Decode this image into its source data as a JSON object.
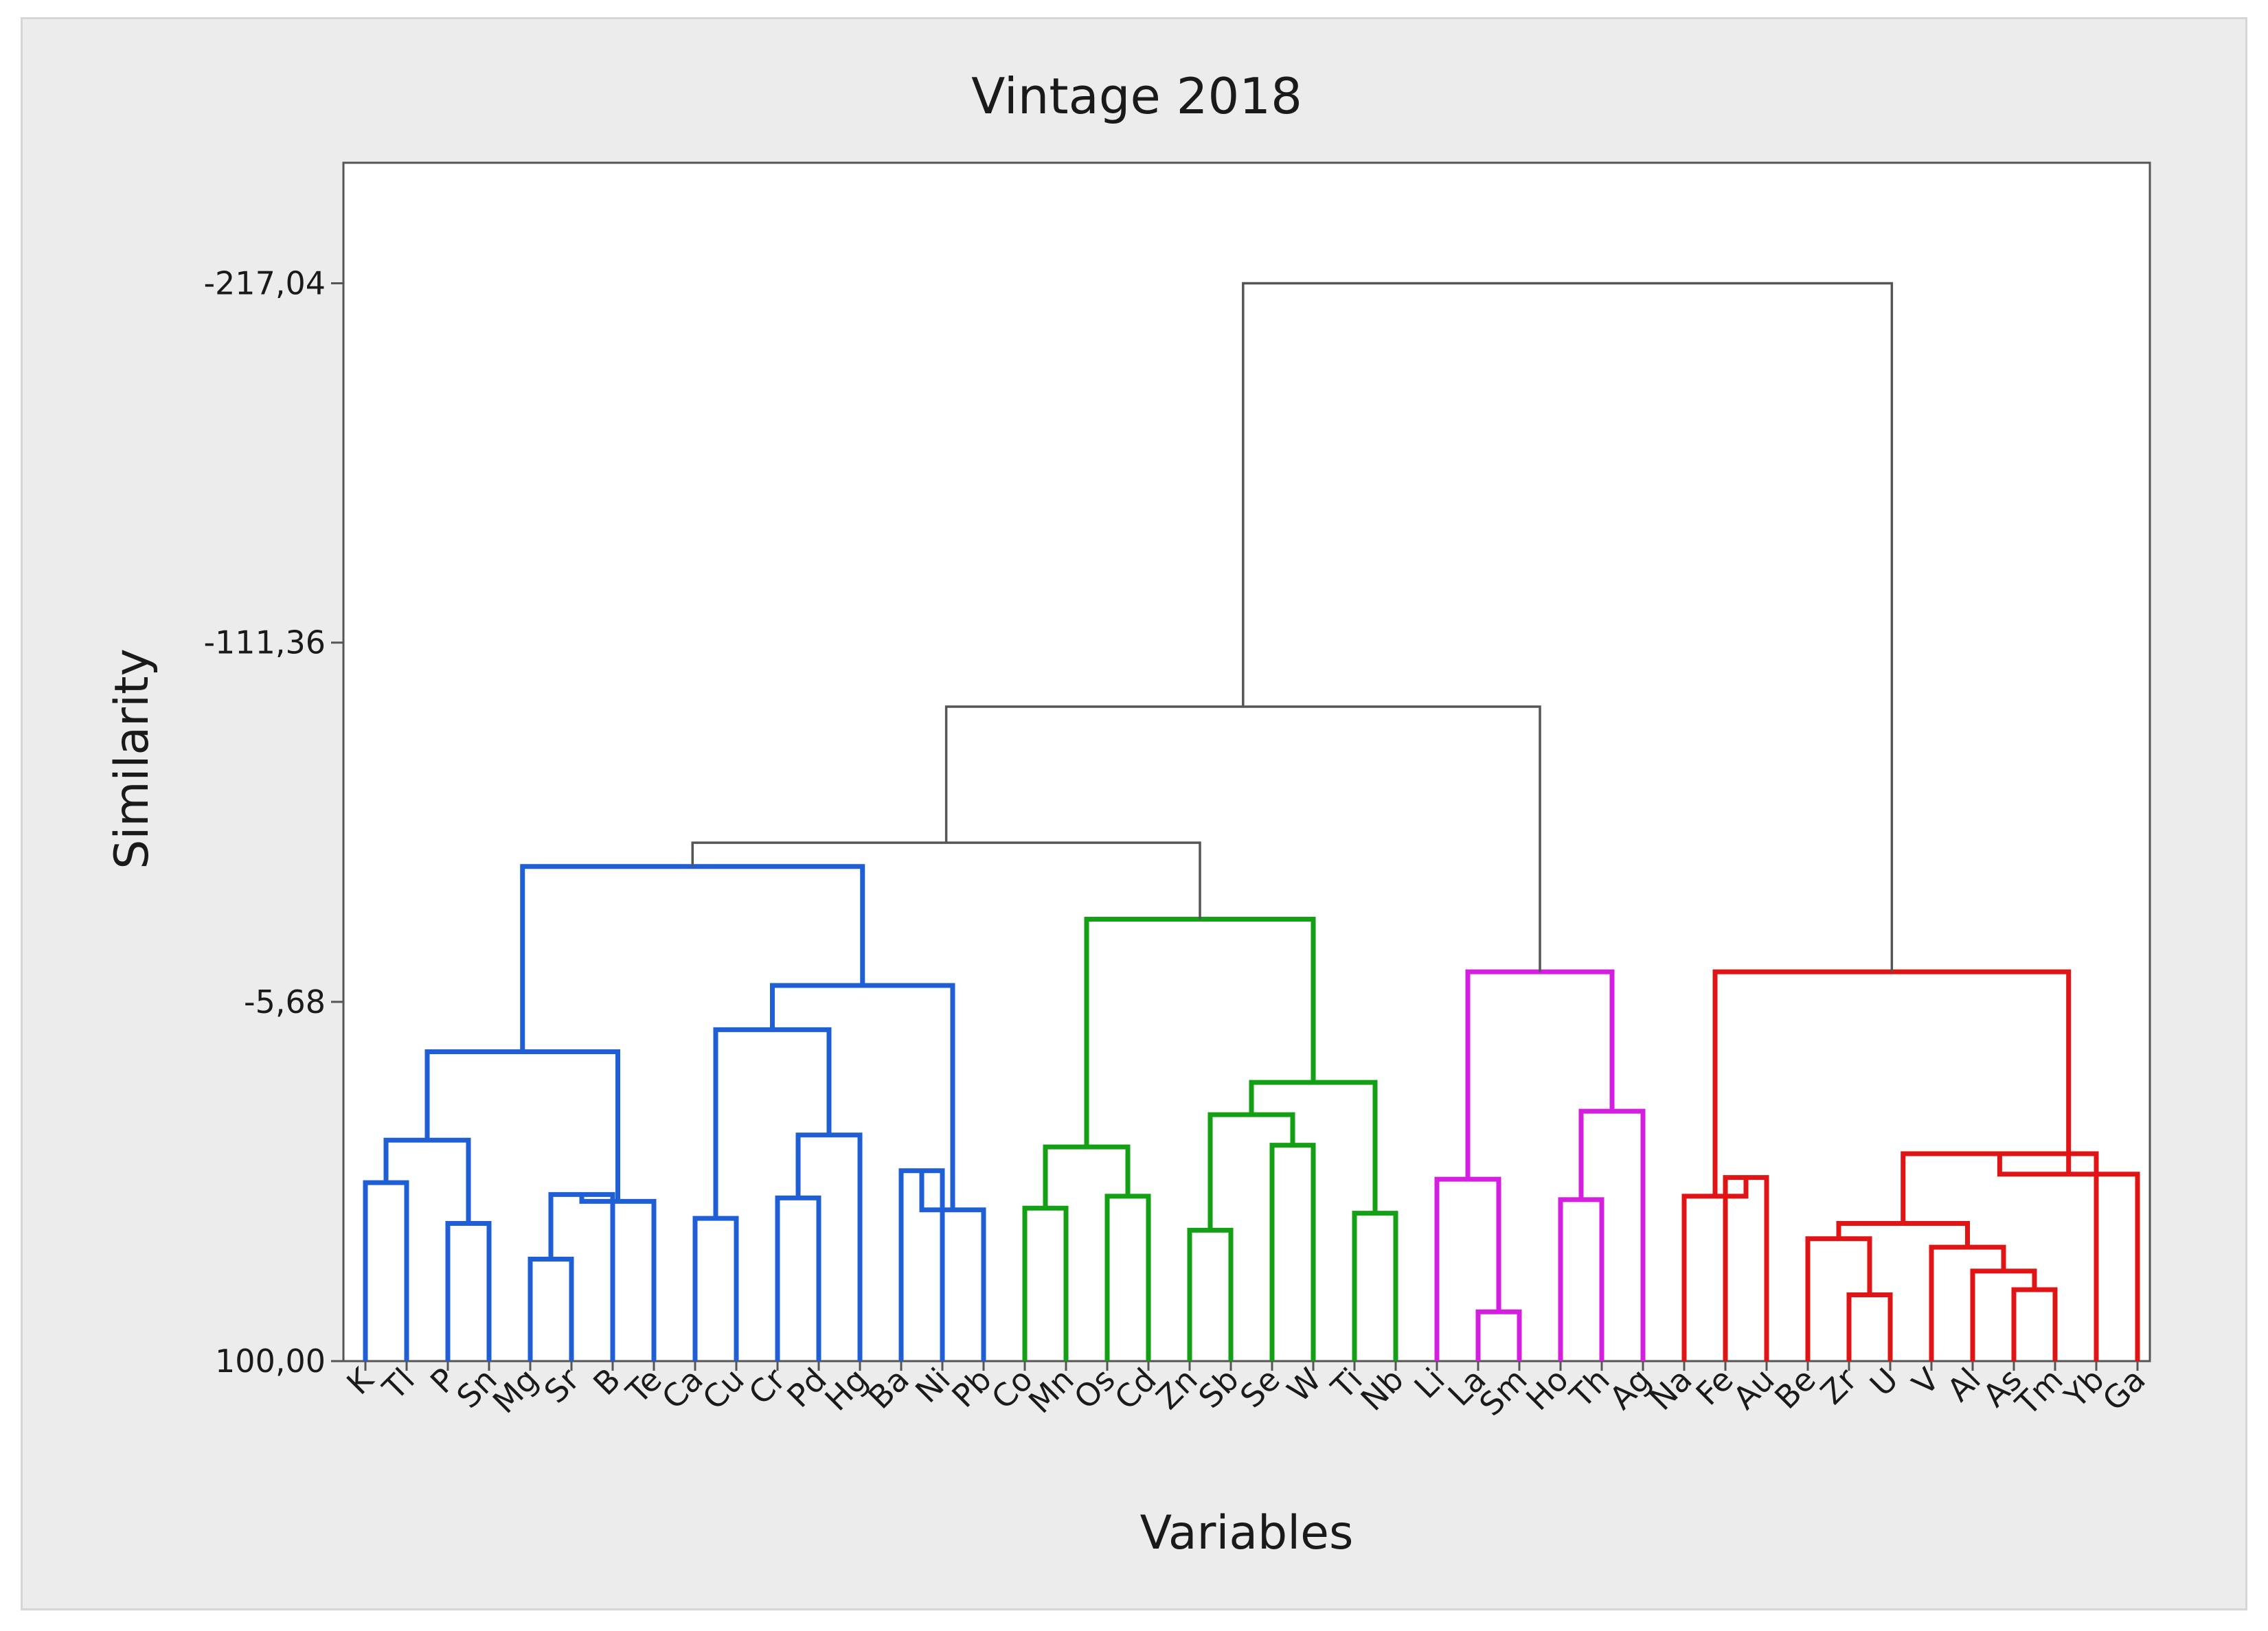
{
  "chart_data": {
    "type": "dendrogram",
    "title": "Vintage 2018",
    "xlabel": "Variables",
    "ylabel": "Similarity",
    "ytick_values": [
      -217.04,
      -111.36,
      -5.68,
      100.0
    ],
    "ytick_labels": [
      "-217,04",
      "-111,36",
      "-5,68",
      "100,00"
    ],
    "ylim": [
      100.0,
      -252.5
    ],
    "leaves": [
      "K",
      "Tl",
      "P",
      "Sn",
      "Mg",
      "Sr",
      "B",
      "Te",
      "Ca",
      "Cu",
      "Cr",
      "Pd",
      "Hg",
      "Ba",
      "Ni",
      "Pb",
      "Co",
      "Mn",
      "Os",
      "Cd",
      "Zn",
      "Sb",
      "Se",
      "W",
      "Ti",
      "Nb",
      "Li",
      "La",
      "Sm",
      "Ho",
      "Th",
      "Ag",
      "Na",
      "Fe",
      "Au",
      "Be",
      "Zr",
      "U",
      "V",
      "Al",
      "As",
      "Tm",
      "Yb",
      "Ga"
    ],
    "colors": {
      "blue": "#1f5fd6",
      "green": "#14a014",
      "magenta": "#d41ee0",
      "red": "#e01414",
      "gray": "#555555"
    },
    "merges": [
      {
        "left": "K",
        "right": "Tl",
        "similarity": 47.5,
        "color": "blue"
      },
      {
        "left": "P",
        "right": "Sn",
        "similarity": 59.5,
        "color": "blue"
      },
      {
        "left": "Mg",
        "right": "Sr",
        "similarity": 70.0,
        "color": "blue"
      },
      {
        "left": "Mg+Sr",
        "right": "B",
        "similarity": 51.0,
        "color": "blue"
      },
      {
        "left": "Mg+Sr+B",
        "right": "Te",
        "similarity": 53.0,
        "color": "blue"
      },
      {
        "left": "K+Tl",
        "right": "P+Sn",
        "similarity": 35.0,
        "color": "blue"
      },
      {
        "left": "K..Sn",
        "right": "Mg..Te",
        "similarity": 9.0,
        "color": "blue"
      },
      {
        "left": "Ca",
        "right": "Cu",
        "similarity": 58.0,
        "color": "blue"
      },
      {
        "left": "Cr",
        "right": "Pd",
        "similarity": 52.0,
        "color": "blue"
      },
      {
        "left": "Cr+Pd",
        "right": "Hg",
        "similarity": 33.5,
        "color": "blue"
      },
      {
        "left": "Ca+Cu",
        "right": "Cr+Pd+Hg",
        "similarity": 2.5,
        "color": "blue"
      },
      {
        "left": "Ba",
        "right": "Ni",
        "similarity": 44.0,
        "color": "blue"
      },
      {
        "left": "Ba+Ni",
        "right": "Pb",
        "similarity": 55.5,
        "color": "blue"
      },
      {
        "left": "Ca..Hg",
        "right": "Ba..Pb",
        "similarity": -10.5,
        "color": "blue"
      },
      {
        "left": "K..Te",
        "right": "Ca..Pb",
        "similarity": -45.5,
        "color": "blue"
      },
      {
        "left": "Co",
        "right": "Mn",
        "similarity": 55.0,
        "color": "green"
      },
      {
        "left": "Os",
        "right": "Cd",
        "similarity": 51.5,
        "color": "green"
      },
      {
        "left": "Co+Mn",
        "right": "Os+Cd",
        "similarity": 37.0,
        "color": "green"
      },
      {
        "left": "Zn",
        "right": "Sb",
        "similarity": 61.5,
        "color": "green"
      },
      {
        "left": "Se",
        "right": "W",
        "similarity": 36.5,
        "color": "green"
      },
      {
        "left": "Zn+Sb",
        "right": "Se+W",
        "similarity": 27.5,
        "color": "green"
      },
      {
        "left": "Ti",
        "right": "Nb",
        "similarity": 56.5,
        "color": "green"
      },
      {
        "left": "Zn..W",
        "right": "Ti+Nb",
        "similarity": 18.0,
        "color": "green"
      },
      {
        "left": "Co..Cd",
        "right": "Zn..Nb",
        "similarity": -30.0,
        "color": "green"
      },
      {
        "left": "Blue cluster",
        "right": "Green cluster",
        "similarity": -52.5,
        "color": "gray"
      },
      {
        "left": "La",
        "right": "Sm",
        "similarity": 85.5,
        "color": "magenta"
      },
      {
        "left": "Li",
        "right": "La+Sm",
        "similarity": 46.5,
        "color": "magenta"
      },
      {
        "left": "Ho",
        "right": "Th",
        "similarity": 52.5,
        "color": "magenta"
      },
      {
        "left": "Ho+Th",
        "right": "Ag",
        "similarity": 26.5,
        "color": "magenta"
      },
      {
        "left": "Li..Sm",
        "right": "Ho..Ag",
        "similarity": -14.5,
        "color": "magenta"
      },
      {
        "left": "Blue+Green",
        "right": "Magenta cluster",
        "similarity": -92.5,
        "color": "gray"
      },
      {
        "left": "Fe",
        "right": "Au",
        "similarity": 46.0,
        "color": "red"
      },
      {
        "left": "Na",
        "right": "Fe+Au",
        "similarity": 51.5,
        "color": "red"
      },
      {
        "left": "Zr",
        "right": "U",
        "similarity": 80.5,
        "color": "red"
      },
      {
        "left": "Be",
        "right": "Zr+U",
        "similarity": 64.0,
        "color": "red"
      },
      {
        "left": "As",
        "right": "Tm",
        "similarity": 79.0,
        "color": "red"
      },
      {
        "left": "Al",
        "right": "As+Tm",
        "similarity": 73.5,
        "color": "red"
      },
      {
        "left": "V",
        "right": "Al..Tm",
        "similarity": 66.5,
        "color": "red"
      },
      {
        "left": "Be..U",
        "right": "V..Tm",
        "similarity": 59.5,
        "color": "red"
      },
      {
        "left": "Be..Tm",
        "right": "Yb",
        "similarity": 39.0,
        "color": "red"
      },
      {
        "left": "Be..Yb",
        "right": "Ga",
        "similarity": 45.0,
        "color": "red"
      },
      {
        "left": "Na..Au",
        "right": "Be..Ga",
        "similarity": -14.5,
        "color": "red"
      },
      {
        "left": "Blue+Green+Magenta",
        "right": "Red cluster",
        "similarity": -217.04,
        "color": "gray"
      }
    ],
    "grid": false,
    "legend": "none"
  }
}
